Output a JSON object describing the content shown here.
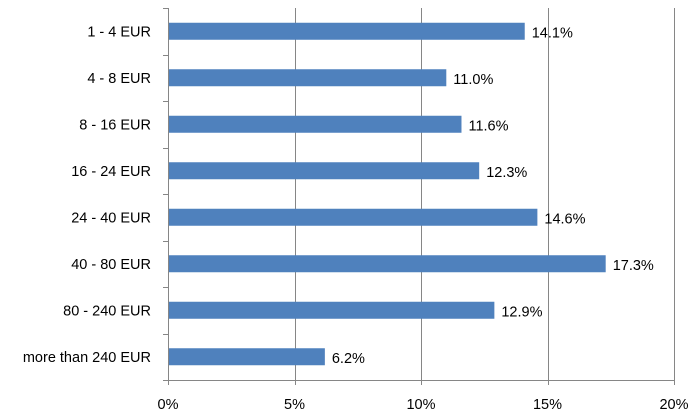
{
  "chart_data": {
    "type": "bar",
    "orientation": "horizontal",
    "categories": [
      "1 - 4 EUR",
      "4 - 8  EUR",
      "8 - 16  EUR",
      "16 - 24 EUR",
      "24 - 40 EUR",
      "40 - 80 EUR",
      "80 - 240 EUR",
      "more than 240 EUR"
    ],
    "values": [
      14.1,
      11.0,
      11.6,
      12.3,
      14.6,
      17.3,
      12.9,
      6.2
    ],
    "value_labels": [
      "14.1%",
      "11.0%",
      "11.6%",
      "12.3%",
      "14.6%",
      "17.3%",
      "12.9%",
      "6.2%"
    ],
    "xlim": [
      0,
      20
    ],
    "xticks": [
      0,
      5,
      10,
      15,
      20
    ],
    "xtick_labels": [
      "0%",
      "5%",
      "10%",
      "15%",
      "20%"
    ],
    "title": "",
    "xlabel": "",
    "ylabel": "",
    "grid": "vertical",
    "bar_color": "#4F81BD",
    "grid_color": "#868686",
    "axis_color": "#868686"
  }
}
